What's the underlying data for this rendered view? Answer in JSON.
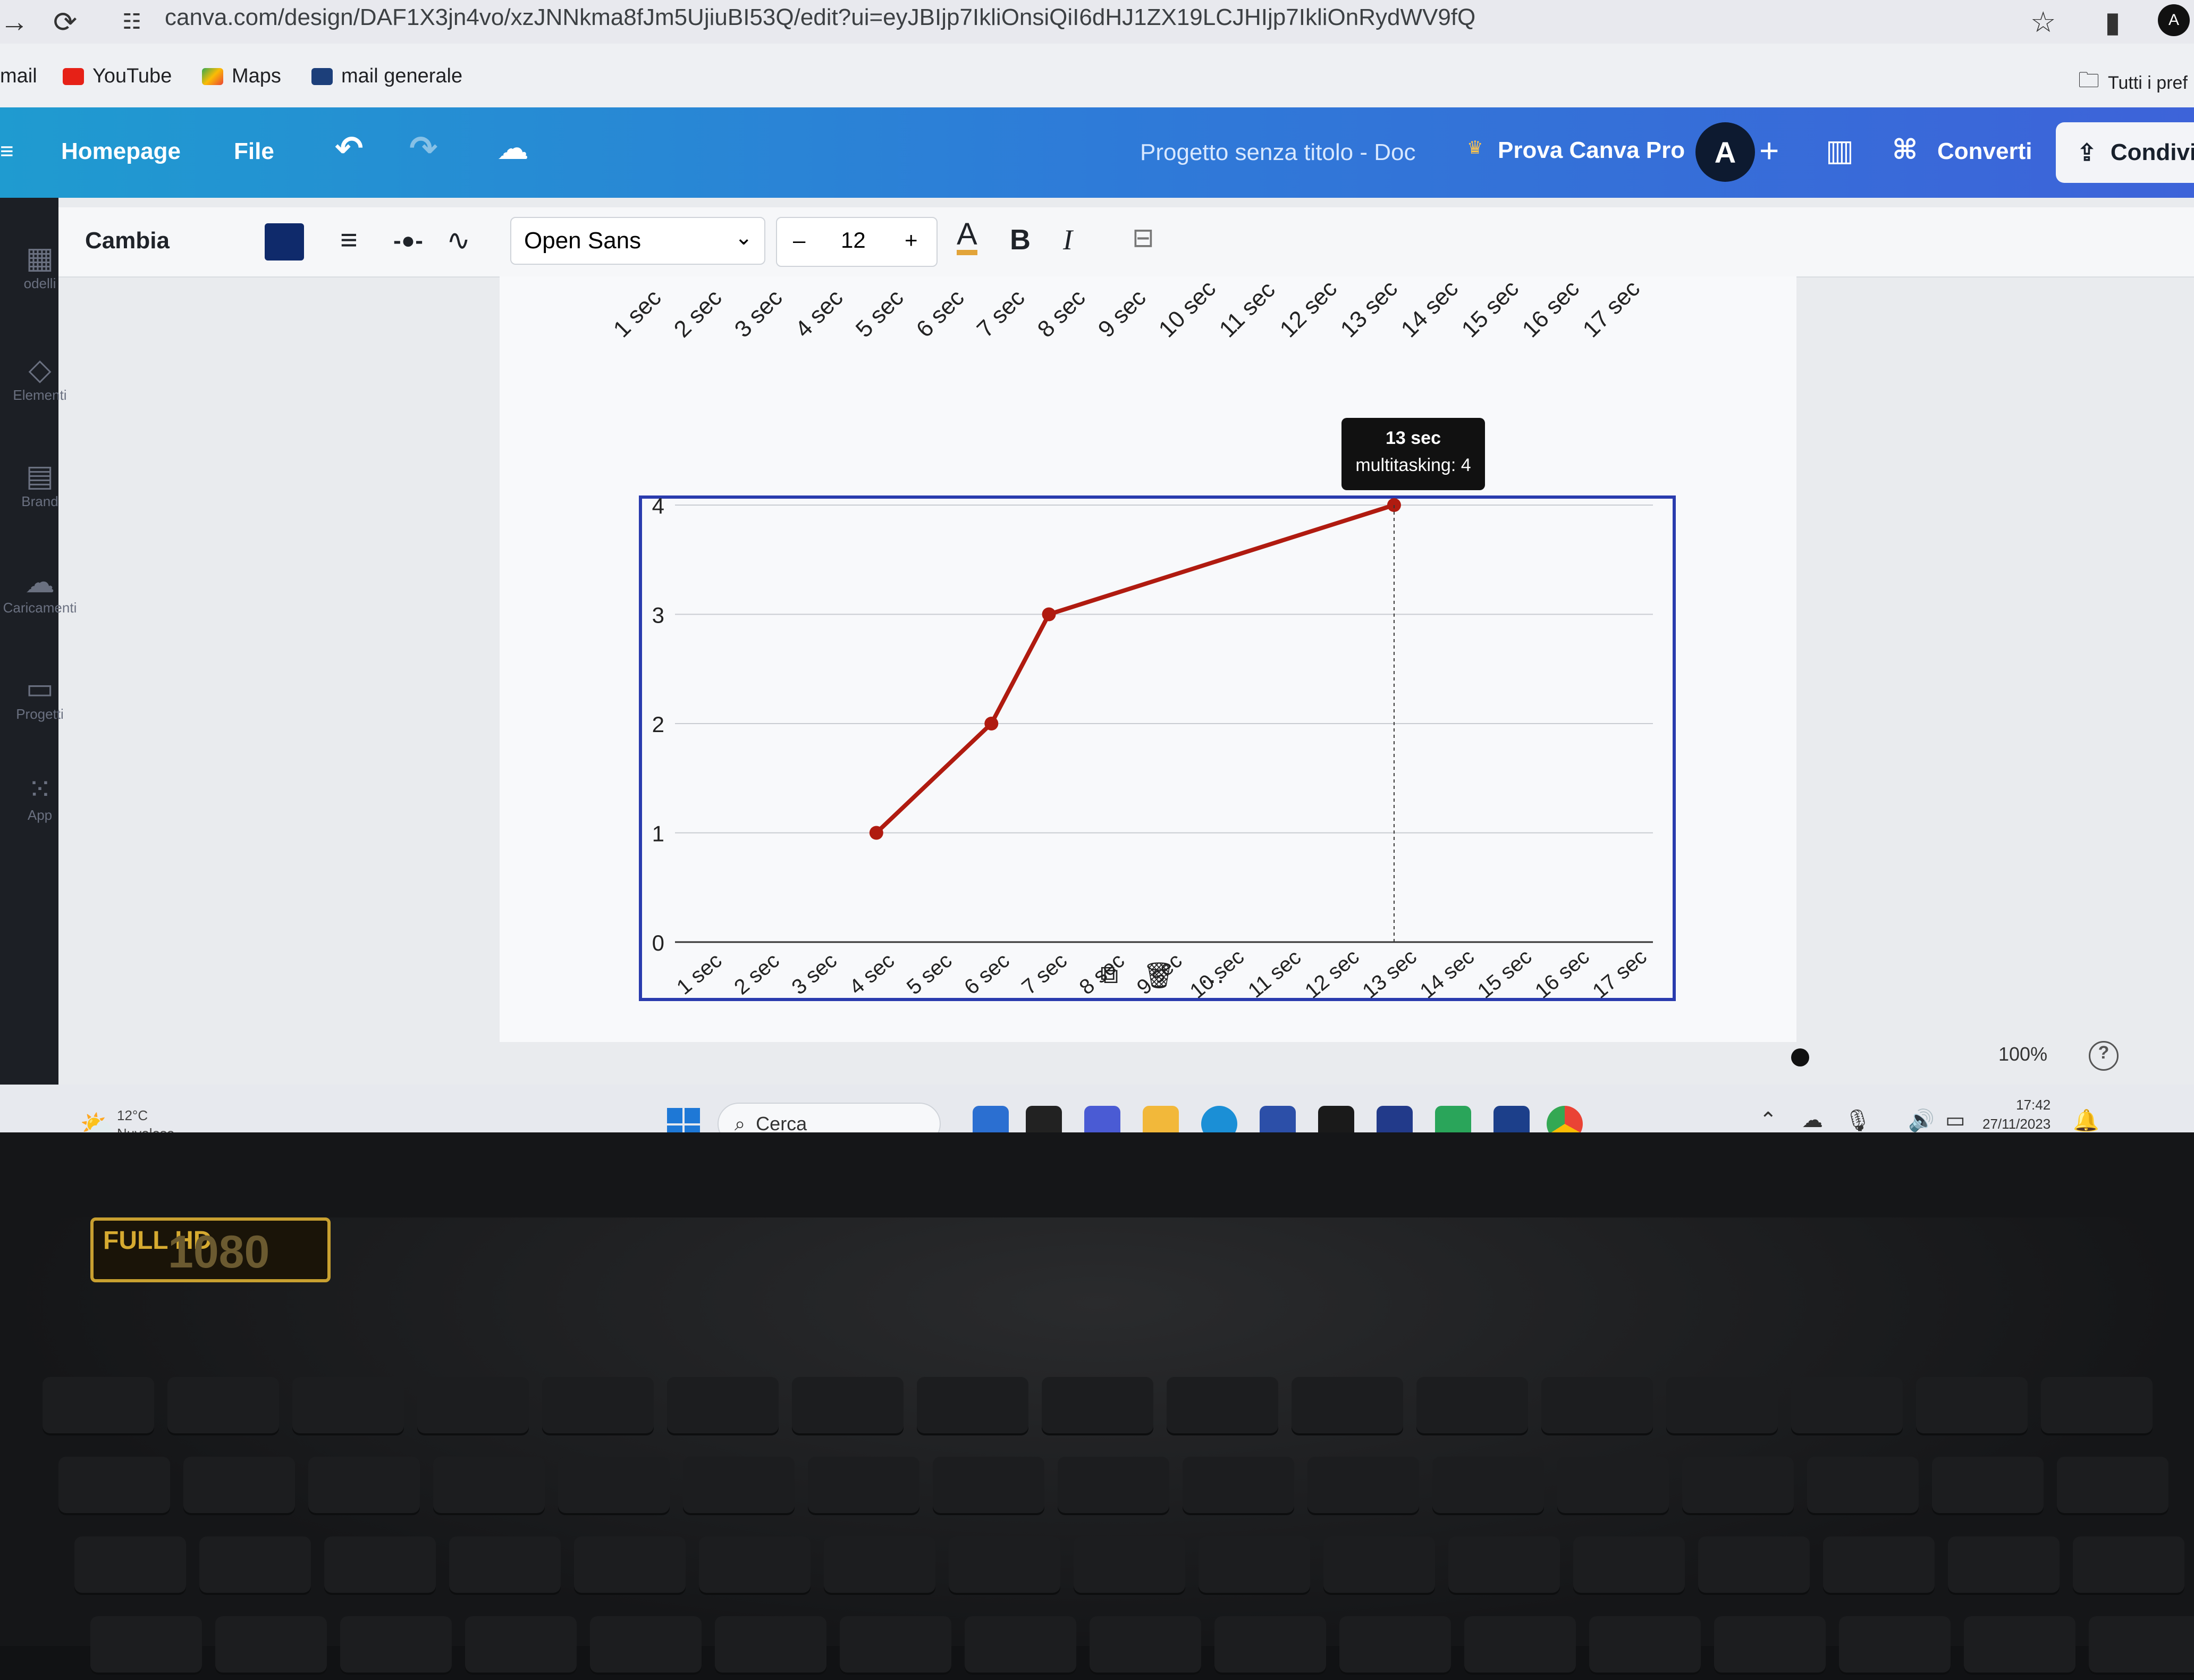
{
  "browser": {
    "url": "canva.com/design/DAF1X3jn4vo/xzJNNkma8fJm5UjiuBI53Q/edit?ui=eyJBIjp7IkliOnsiQiI6dHJ1ZX19LCJHIjp7IkliOnRydWV9fQ",
    "bookmarks": [
      {
        "label": "mail",
        "icon": "gmail-icon"
      },
      {
        "label": "YouTube",
        "icon": "youtube-icon",
        "color": "#e62117"
      },
      {
        "label": "Maps",
        "icon": "maps-icon"
      },
      {
        "label": "mail generale",
        "icon": "mail-icon"
      }
    ],
    "bookmarks_folder": "Tutti i pref"
  },
  "canva_header": {
    "home": "Homepage",
    "file": "File",
    "doc_title": "Progetto senza titolo - Doc",
    "pro": "Prova Canva Pro",
    "avatar_letter": "A",
    "convert": "Converti",
    "share": "Condivid"
  },
  "sidebar": {
    "items": [
      {
        "label": "odelli",
        "icon": "templates-icon"
      },
      {
        "label": "Elementi",
        "icon": "elements-icon"
      },
      {
        "label": "Brand",
        "icon": "brand-icon"
      },
      {
        "label": "Caricamenti",
        "icon": "upload-icon"
      },
      {
        "label": "Progetti",
        "icon": "folder-icon"
      },
      {
        "label": "App",
        "icon": "apps-icon"
      }
    ]
  },
  "toolbar": {
    "change": "Cambia",
    "font": "Open Sans",
    "size": "12",
    "minus": "–",
    "plus": "+",
    "bold": "B",
    "italic": "I",
    "color_swatch": "#0f2a6b"
  },
  "chart_data": {
    "type": "line",
    "categories": [
      "1 sec",
      "2 sec",
      "3 sec",
      "4 sec",
      "5 sec",
      "6 sec",
      "7 sec",
      "8 sec",
      "9 sec",
      "10 sec",
      "11 sec",
      "12 sec",
      "13 sec",
      "14 sec",
      "15 sec",
      "16 sec",
      "17 sec"
    ],
    "series": [
      {
        "name": "multitasking",
        "values": [
          null,
          null,
          null,
          1,
          null,
          2,
          3,
          null,
          null,
          null,
          null,
          null,
          4,
          null,
          null,
          null,
          null
        ],
        "color": "#b01b10"
      }
    ],
    "ylim": [
      0,
      4
    ],
    "yticks": [
      0,
      1,
      2,
      3,
      4
    ],
    "grid": true,
    "tooltip": {
      "title": "13 sec",
      "text": "multitasking: 4"
    }
  },
  "status": {
    "zoom": "100%",
    "help": "?"
  },
  "taskbar": {
    "weather_temp": "12°C",
    "weather_desc": "Nuvoloso",
    "search": "Cerca",
    "time": "17:42",
    "date": "27/11/2023"
  },
  "laptop": {
    "sticker": "FULL HD",
    "sticker_num": "1080"
  }
}
